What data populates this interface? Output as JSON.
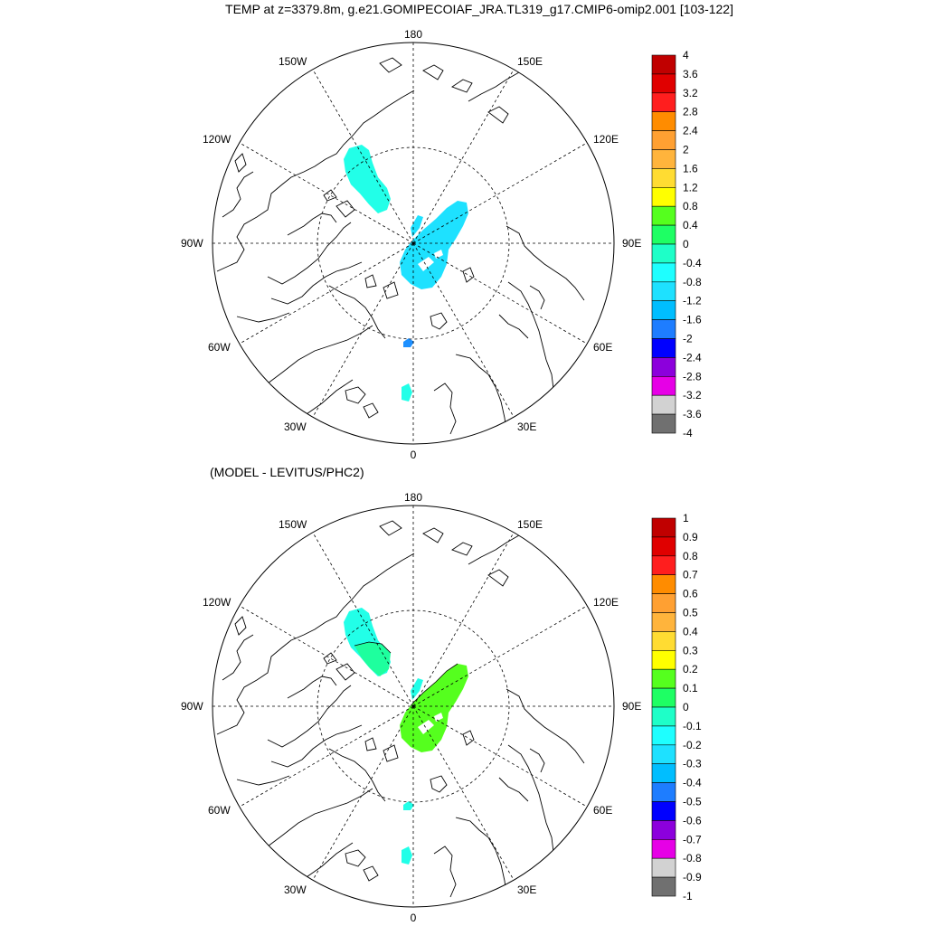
{
  "title": "TEMP at z=3379.8m, g.e21.GOMIPECOIAF_JRA.TL319_g17.CMIP6-omip2.001 [103-122]",
  "subtitle": "(MODEL - LEVITUS/PHC2)",
  "lon_labels": {
    "top": "180",
    "bottom": "0",
    "left": "90W",
    "right": "90E",
    "upper_left_1": "150W",
    "upper_left_2": "120W",
    "upper_right_1": "150E",
    "upper_right_2": "120E",
    "lower_left_1": "60W",
    "lower_left_2": "30W",
    "lower_right_1": "60E",
    "lower_right_2": "30E"
  },
  "colors": {
    "fill_cyan": "#22ffe8",
    "fill_lightblue": "#1ee1ff",
    "fill_blue": "#1e90ff",
    "fill_green": "#55ff1e",
    "fill_teal": "#1eff9e"
  },
  "colorbar_top": {
    "labels": [
      "4",
      "3.6",
      "3.2",
      "2.8",
      "2.4",
      "2",
      "1.6",
      "1.2",
      "0.8",
      "0.4",
      "0",
      "-0.4",
      "-0.8",
      "-1.2",
      "-1.6",
      "-2",
      "-2.4",
      "-2.8",
      "-3.2",
      "-3.6",
      "-4"
    ],
    "colors": [
      "#c00000",
      "#e00000",
      "#ff1e1e",
      "#ff8c00",
      "#ffa032",
      "#ffb43c",
      "#ffdc32",
      "#ffff00",
      "#55ff1e",
      "#1eff64",
      "#1effc8",
      "#1effff",
      "#1ee1ff",
      "#00beff",
      "#1e7dff",
      "#0000ff",
      "#8c00dc",
      "#e600e6",
      "#d2d2d2",
      "#707070"
    ]
  },
  "colorbar_bottom": {
    "labels": [
      "1",
      "0.9",
      "0.8",
      "0.7",
      "0.6",
      "0.5",
      "0.4",
      "0.3",
      "0.2",
      "0.1",
      "0",
      "-0.1",
      "-0.2",
      "-0.3",
      "-0.4",
      "-0.5",
      "-0.6",
      "-0.7",
      "-0.8",
      "-0.9",
      "-1"
    ],
    "colors": [
      "#c00000",
      "#e00000",
      "#ff1e1e",
      "#ff8c00",
      "#ffa032",
      "#ffb43c",
      "#ffdc32",
      "#ffff00",
      "#55ff1e",
      "#1eff64",
      "#1effc8",
      "#1effff",
      "#1ee1ff",
      "#00beff",
      "#1e7dff",
      "#0000ff",
      "#8c00dc",
      "#e600e6",
      "#d2d2d2",
      "#707070"
    ]
  }
}
